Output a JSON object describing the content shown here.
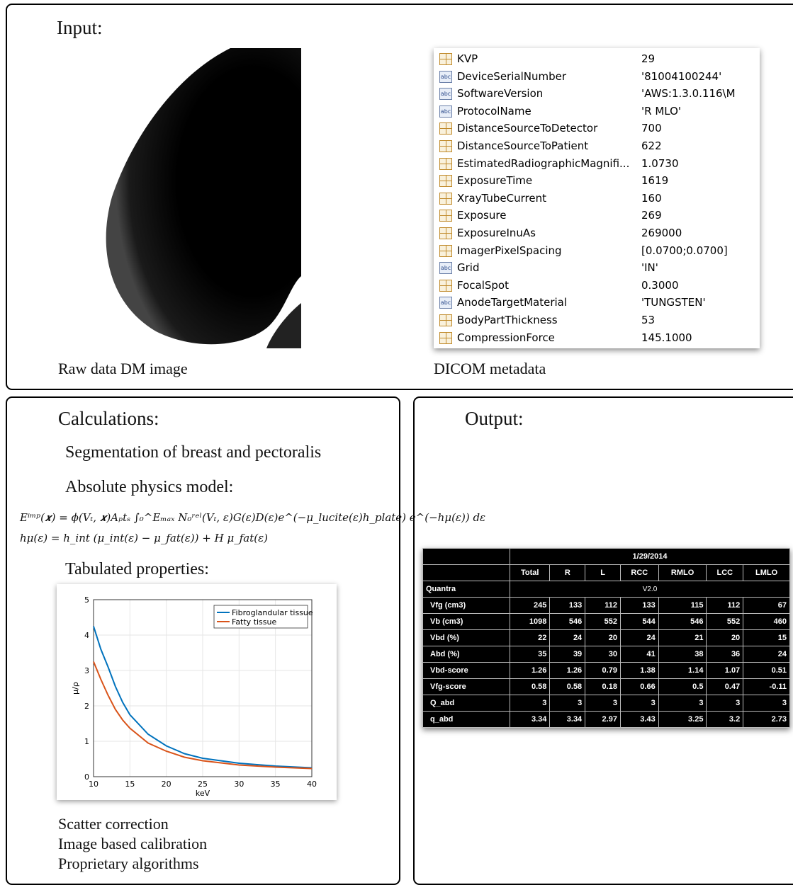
{
  "input": {
    "title": "Input:",
    "image_caption": "Raw data DM image",
    "metadata_caption": "DICOM metadata",
    "metadata": [
      [
        "KVP",
        "29"
      ],
      [
        "DeviceSerialNumber",
        "'81004100244'"
      ],
      [
        "SoftwareVersion",
        "'AWS:1.3.0.116\\M"
      ],
      [
        "ProtocolName",
        "'R MLO'"
      ],
      [
        "DistanceSourceToDetector",
        "700"
      ],
      [
        "DistanceSourceToPatient",
        "622"
      ],
      [
        "EstimatedRadiographicMagnifi...",
        "1.0730"
      ],
      [
        "ExposureTime",
        "1619"
      ],
      [
        "XrayTubeCurrent",
        "160"
      ],
      [
        "Exposure",
        "269"
      ],
      [
        "ExposureInuAs",
        "269000"
      ],
      [
        "ImagerPixelSpacing",
        "[0.0700;0.0700]"
      ],
      [
        "Grid",
        "'IN'"
      ],
      [
        "FocalSpot",
        "0.3000"
      ],
      [
        "AnodeTargetMaterial",
        "'TUNGSTEN'"
      ],
      [
        "BodyPartThickness",
        "53"
      ],
      [
        "CompressionForce",
        "145.1000"
      ]
    ]
  },
  "calculations": {
    "title": "Calculations:",
    "segmentation": "Segmentation of breast and pectoralis",
    "model_title": "Absolute physics model:",
    "equations": [
      "Eⁱᵐᵖ(𝒙) = ϕ(Vₜ, 𝒙)Aₚtₛ ∫₀^Eₘₐₓ N₀ʳᵉˡ(Vₜ, ε)G(ε)D(ε)e^(−μ_lucite(ε)h_plate) e^(−hμ(ε)) dε",
      "hμ(ε) = h_int (μ_int(ε) − μ_fat(ε)) + H μ_fat(ε)"
    ],
    "tabulated_title": "Tabulated properties:",
    "notes": [
      "Scatter correction",
      "Image based calibration",
      "Proprietary algorithms"
    ]
  },
  "chart_data": {
    "type": "line",
    "xlabel": "keV",
    "ylabel": "μ/ρ",
    "x": [
      10,
      11,
      12,
      13,
      14,
      15,
      17.5,
      20,
      22.5,
      25,
      30,
      35,
      40
    ],
    "series": [
      {
        "name": "Fibroglandular tissue",
        "color": "#0072bd",
        "values": [
          4.25,
          3.6,
          3.1,
          2.55,
          2.1,
          1.75,
          1.2,
          0.87,
          0.65,
          0.52,
          0.38,
          0.3,
          0.25
        ]
      },
      {
        "name": "Fatty tissue",
        "color": "#d95319",
        "values": [
          3.25,
          2.75,
          2.3,
          1.9,
          1.6,
          1.37,
          0.95,
          0.72,
          0.55,
          0.45,
          0.33,
          0.27,
          0.23
        ]
      }
    ],
    "xlim": [
      10,
      40
    ],
    "ylim": [
      0,
      5
    ],
    "xticks": [
      10,
      15,
      20,
      25,
      30,
      35,
      40
    ],
    "yticks": [
      0,
      1,
      2,
      3,
      4,
      5
    ],
    "grid": true,
    "legend": "upper right"
  },
  "output": {
    "title": "Output:",
    "table": {
      "date": "1/29/2014",
      "columns": [
        "Total",
        "R",
        "L",
        "RCC",
        "RMLO",
        "LCC",
        "LMLO"
      ],
      "version_label": "Quantra",
      "version": "V2.0",
      "rows": [
        {
          "label": "Vfg (cm3)",
          "values": [
            245,
            133,
            112,
            133,
            115,
            112,
            67
          ]
        },
        {
          "label": "Vb (cm3)",
          "values": [
            1098,
            546,
            552,
            544,
            546,
            552,
            460
          ]
        },
        {
          "label": "Vbd (%)",
          "values": [
            22,
            24,
            20,
            24,
            21,
            20,
            15
          ]
        },
        {
          "label": "Abd (%)",
          "values": [
            35,
            39,
            30,
            41,
            38,
            36,
            24
          ]
        },
        {
          "label": "Vbd-score",
          "values": [
            1.26,
            1.26,
            0.79,
            1.38,
            1.14,
            1.07,
            0.51
          ]
        },
        {
          "label": "Vfg-score",
          "values": [
            0.58,
            0.58,
            0.18,
            0.66,
            0.5,
            0.47,
            -0.11
          ]
        },
        {
          "label": "Q_abd",
          "values": [
            3,
            3,
            3,
            3,
            3,
            3,
            3
          ]
        },
        {
          "label": "q_abd",
          "values": [
            3.34,
            3.34,
            2.97,
            3.43,
            3.25,
            3.2,
            2.73
          ]
        }
      ]
    }
  }
}
